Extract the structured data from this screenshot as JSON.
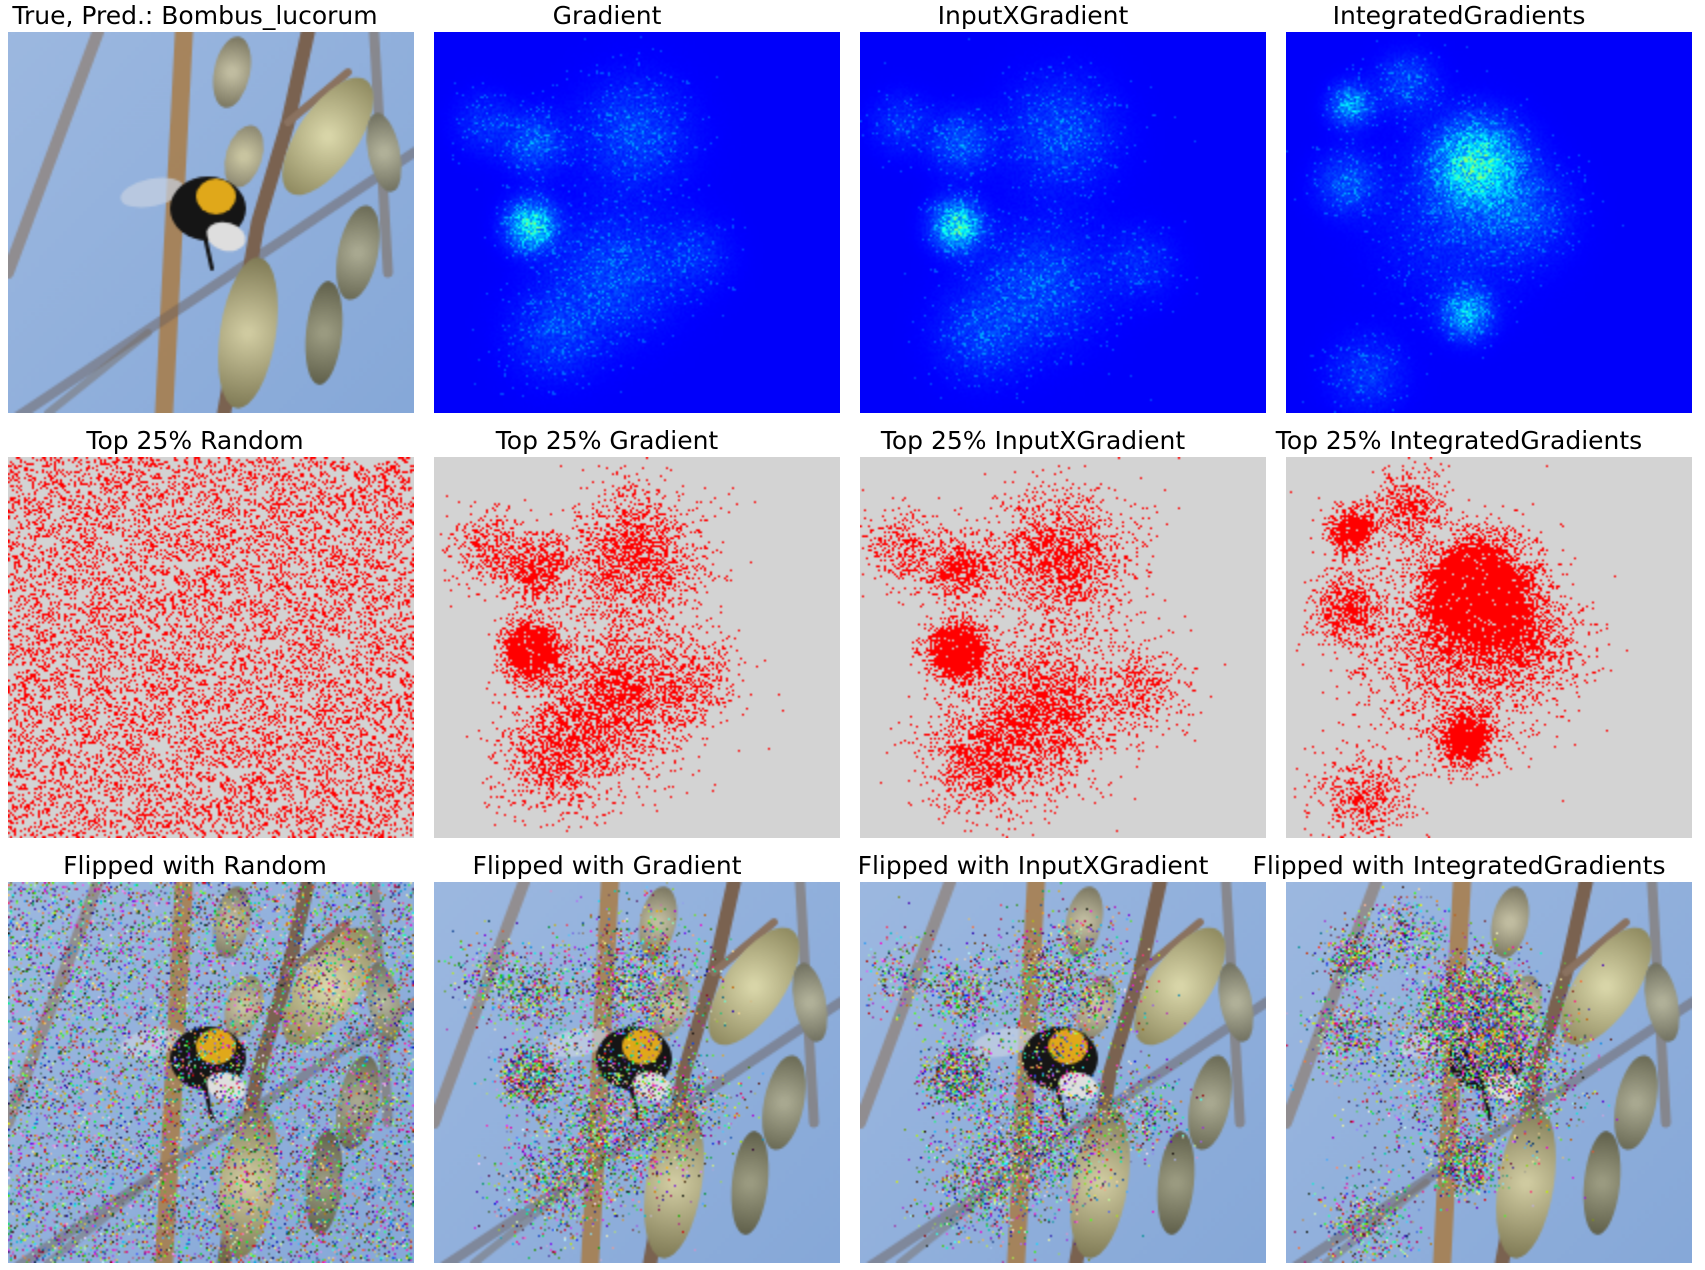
{
  "figure": {
    "titles": [
      [
        "True, Pred.: Bombus_lucorum",
        "Gradient",
        "InputXGradient",
        "IntegratedGradients"
      ],
      [
        "Top 25% Random",
        "Top 25% Gradient",
        "Top 25% InputXGradient",
        "Top 25% IntegratedGradients"
      ],
      [
        "Flipped with Random",
        "Flipped with Gradient",
        "Flipped with InputXGradient",
        "Flipped with IntegratedGradients"
      ]
    ],
    "panels": [
      [
        "photo",
        "saliency-gradient",
        "saliency-inputxgradient",
        "saliency-integratedgradients"
      ],
      [
        "mask-random",
        "mask-gradient",
        "mask-inputxgradient",
        "mask-integratedgradients"
      ],
      [
        "flipped-random",
        "flipped-gradient",
        "flipped-inputxgradient",
        "flipped-integratedgradients"
      ]
    ]
  },
  "colors": {
    "heatmap_background": "#00008b",
    "mask_background": "#d3d3d3",
    "mask_selected": "#ff0000",
    "sky": "#8fb0dc"
  }
}
